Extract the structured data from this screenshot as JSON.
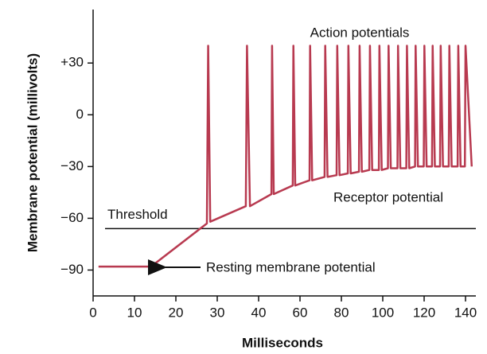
{
  "chart_data": {
    "type": "line",
    "xlabel": "Milliseconds",
    "ylabel": "Membrane potential (millivolts)",
    "color": "#b83a50",
    "xlim": [
      0,
      145
    ],
    "xticks": [
      0,
      10,
      20,
      30,
      40,
      60,
      80,
      100,
      120,
      140
    ],
    "ylim": [
      -105,
      61
    ],
    "yticks": [
      {
        "value": 30,
        "label": "+30"
      },
      0,
      {
        "value": -30,
        "label": "−30"
      },
      {
        "value": -60,
        "label": "−60"
      },
      {
        "value": -90,
        "label": "−90"
      }
    ],
    "x": [
      1.3,
      14,
      27.5,
      27.8,
      28.3,
      36.9,
      37.2,
      37.9,
      46.2,
      46.5,
      47.3,
      56.5,
      56.8,
      57.7,
      64.6,
      64.9,
      65.9,
      71.9,
      72.2,
      73.3,
      77.7,
      78,
      79.1,
      83.1,
      83.4,
      84.5,
      88.5,
      88.8,
      89.9,
      93.5,
      93.8,
      94.9,
      98.1,
      98.4,
      99.5,
      102.5,
      102.8,
      103.9,
      107.1,
      107.4,
      108.5,
      111.4,
      111.7,
      112.8,
      115.6,
      115.9,
      117,
      119.8,
      120.1,
      121.2,
      123.8,
      124.1,
      125.2,
      127.7,
      128,
      129.1,
      131.9,
      132.2,
      133.3,
      136.2,
      136.5,
      137.6,
      139.7,
      140,
      143
    ],
    "values": [
      -88,
      -88,
      -63,
      40,
      -62,
      -53,
      40,
      -53,
      -46,
      40,
      -46,
      -41,
      40,
      -41,
      -38,
      40,
      -38,
      -36,
      40,
      -36,
      -35,
      40,
      -35,
      -34,
      40,
      -34,
      -33,
      40,
      -33,
      -32,
      40,
      -32,
      -32,
      40,
      -32,
      -31,
      40,
      -31,
      -31,
      40,
      -31,
      -31,
      40,
      -31,
      -30,
      40,
      -30,
      -30,
      40,
      -30,
      -30,
      40,
      -30,
      -30,
      40,
      -30,
      -30,
      40,
      -30,
      -30,
      40,
      -30,
      -30,
      40,
      -30
    ],
    "threshold": {
      "label": "Threshold",
      "value": -66
    },
    "annotations": [
      "Action potentials",
      "Receptor potential",
      "Resting membrane potential"
    ]
  }
}
